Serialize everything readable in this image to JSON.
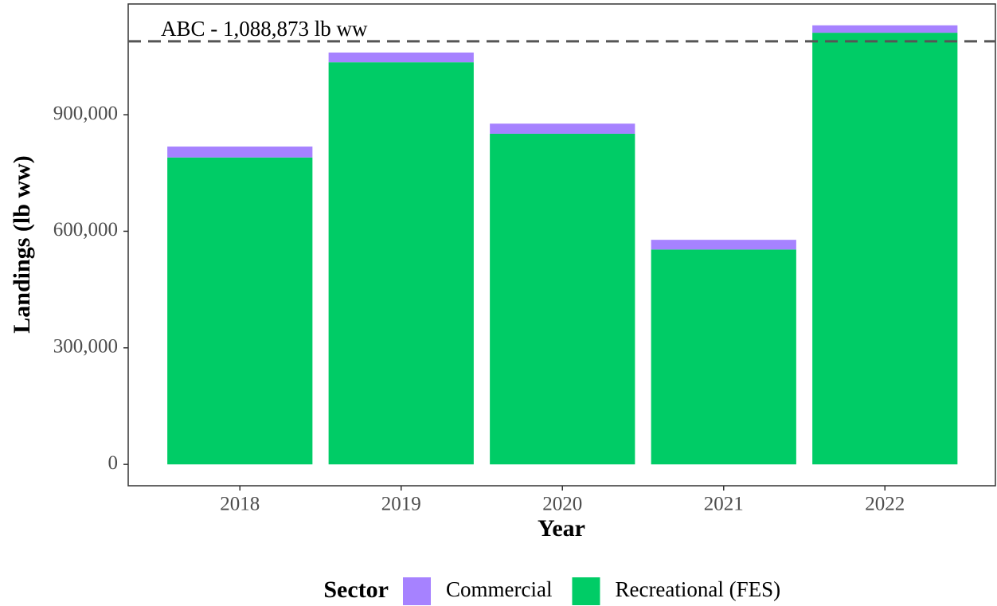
{
  "chart_data": {
    "type": "bar",
    "stacked": true,
    "x_label": "Year",
    "y_label": "Landings (lb ww)",
    "categories": [
      "2018",
      "2019",
      "2020",
      "2021",
      "2022"
    ],
    "series": [
      {
        "name": "Commercial",
        "color": "#a682ff",
        "values": [
          28000,
          25000,
          26000,
          25000,
          19000
        ]
      },
      {
        "name": "Recreational (FES)",
        "color": "#00cc66",
        "values": [
          790000,
          1035000,
          851000,
          553000,
          1111000
        ]
      }
    ],
    "legend_title": "Sector",
    "legend_position": "bottom",
    "reference_line": {
      "value": 1088873,
      "label": "ABC - 1,088,873 lb ww"
    },
    "ylim": [
      -55000,
      1185000
    ],
    "yticks": [
      0,
      {
        "value": 300000,
        "label": "300,000"
      },
      {
        "value": 600000,
        "label": "600,000"
      },
      {
        "value": 900000,
        "label": "900,000"
      }
    ],
    "grid": false
  }
}
